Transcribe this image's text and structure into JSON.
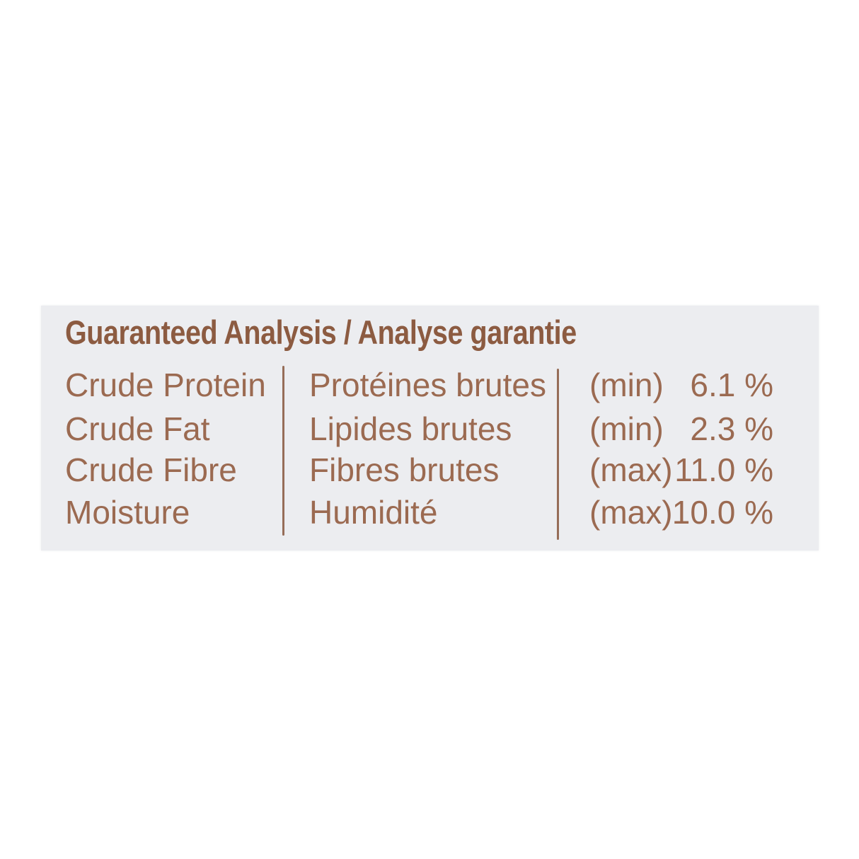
{
  "page": {
    "background_color": "#ffffff",
    "panel_background_color": "#ecedf0",
    "text_color": "#9b6a51",
    "title_color": "#8c5b41",
    "divider_color": "#8d5e47"
  },
  "title": "Guaranteed Analysis / Analyse garantie",
  "analysis_table": {
    "rows": [
      {
        "name_en": "Crude Protein",
        "name_fr": "Protéines brutes",
        "limit": "(min)",
        "value": "6.1 %"
      },
      {
        "name_en": "Crude Fat",
        "name_fr": "Lipides brutes",
        "limit": "(min)",
        "value": "2.3 %"
      },
      {
        "name_en": "Crude Fibre",
        "name_fr": "Fibres brutes",
        "limit": "(max)",
        "value": "11.0 %"
      },
      {
        "name_en": "Moisture",
        "name_fr": "Humidité",
        "limit": "(max)",
        "value": "10.0 %"
      }
    ]
  }
}
